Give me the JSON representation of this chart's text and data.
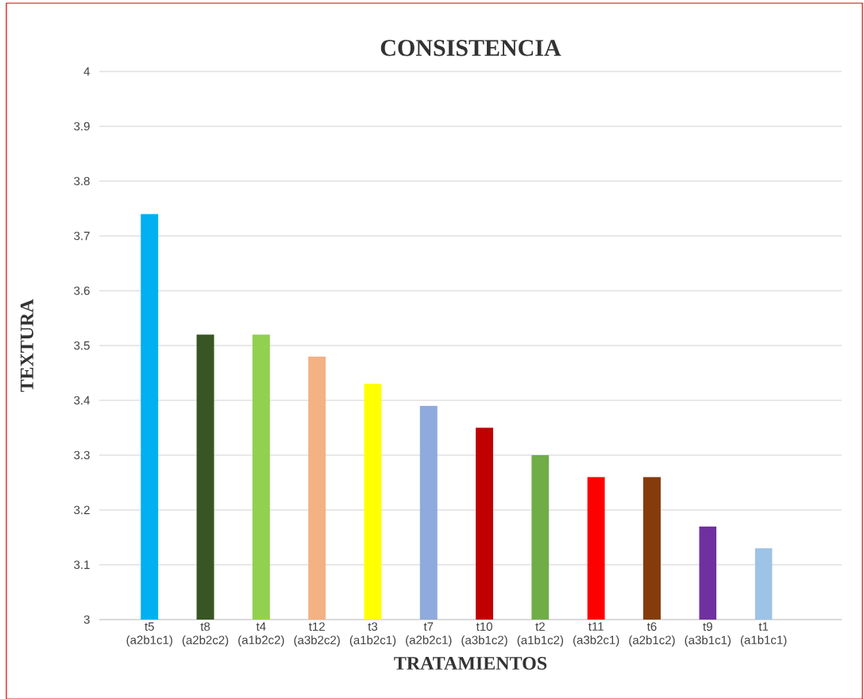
{
  "chart_data": {
    "type": "bar",
    "title": "CONSISTENCIA",
    "xlabel": "TRATAMIENTOS",
    "ylabel": "TEXTURA",
    "categories": [
      "t5 (a2b1c1)",
      "t8 (a2b2c2)",
      "t4 (a1b2c2)",
      "t12 (a3b2c2)",
      "t3 (a1b2c1)",
      "t7 (a2b2c1)",
      "t10 (a3b1c2)",
      "t2 (a1b1c2)",
      "t11 (a3b2c1)",
      "t6 (a2b1c2)",
      "t9 (a3b1c1)",
      "t1 (a1b1c1)"
    ],
    "values": [
      3.74,
      3.52,
      3.52,
      3.48,
      3.43,
      3.39,
      3.35,
      3.3,
      3.26,
      3.26,
      3.17,
      3.13
    ],
    "colors": [
      "#00b0f0",
      "#375623",
      "#92d050",
      "#f4b183",
      "#ffff00",
      "#8faadc",
      "#c00000",
      "#70ad47",
      "#ff0000",
      "#843c0c",
      "#7030a0",
      "#9dc3e6"
    ],
    "ylim": [
      3,
      4
    ],
    "yticks": [
      3,
      3.1,
      3.2,
      3.3,
      3.4,
      3.5,
      3.6,
      3.7,
      3.8,
      3.9,
      4
    ],
    "grid": "y"
  }
}
